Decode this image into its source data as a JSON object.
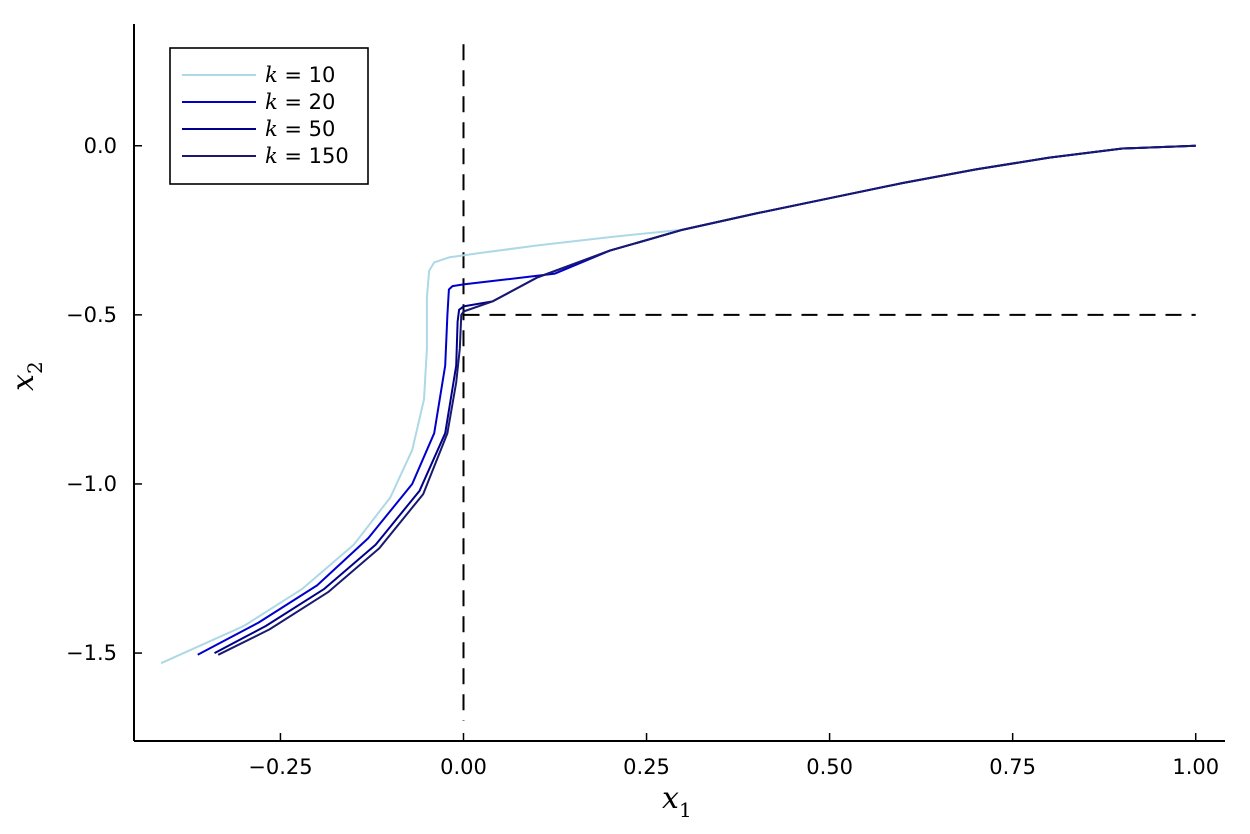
{
  "chart_data": {
    "type": "line",
    "xlabel": "x",
    "xlabel_subscript": "1",
    "ylabel": "x",
    "ylabel_subscript": "2",
    "xlim": [
      -0.45,
      1.04
    ],
    "ylim": [
      -1.76,
      0.36
    ],
    "x_ticks": [
      -0.25,
      0.0,
      0.25,
      0.5,
      0.75,
      1.0
    ],
    "x_tick_labels": [
      "−0.25",
      "0.00",
      "0.25",
      "0.50",
      "0.75",
      "1.00"
    ],
    "y_ticks": [
      0.0,
      -0.5,
      -1.0,
      -1.5
    ],
    "y_tick_labels": [
      "0.0",
      "−0.5",
      "−1.0",
      "−1.5"
    ],
    "grid": false,
    "legend_position": "top-left",
    "reference_lines": [
      {
        "orientation": "vertical",
        "x": 0.0,
        "y_range": [
          -1.7,
          0.3
        ],
        "style": "dashed",
        "color": "#000000"
      },
      {
        "orientation": "horizontal",
        "y": -0.5,
        "x_range": [
          0.0,
          1.0
        ],
        "style": "dashed",
        "color": "#000000"
      }
    ],
    "series": [
      {
        "name": "k = 10",
        "legend_symbol": "k",
        "legend_value": "10",
        "color": "#add8e6",
        "points": [
          [
            1.0,
            0.0
          ],
          [
            0.9,
            -0.008
          ],
          [
            0.8,
            -0.035
          ],
          [
            0.7,
            -0.07
          ],
          [
            0.6,
            -0.11
          ],
          [
            0.5,
            -0.155
          ],
          [
            0.4,
            -0.2
          ],
          [
            0.3,
            -0.248
          ],
          [
            0.2,
            -0.27
          ],
          [
            0.1,
            -0.295
          ],
          [
            0.02,
            -0.318
          ],
          [
            -0.02,
            -0.33
          ],
          [
            -0.04,
            -0.345
          ],
          [
            -0.047,
            -0.37
          ],
          [
            -0.05,
            -0.45
          ],
          [
            -0.05,
            -0.6
          ],
          [
            -0.054,
            -0.75
          ],
          [
            -0.07,
            -0.9
          ],
          [
            -0.1,
            -1.04
          ],
          [
            -0.15,
            -1.18
          ],
          [
            -0.22,
            -1.31
          ],
          [
            -0.3,
            -1.42
          ],
          [
            -0.413,
            -1.53
          ]
        ]
      },
      {
        "name": "k = 20",
        "legend_symbol": "k",
        "legend_value": "20",
        "color": "#0000cd",
        "points": [
          [
            1.0,
            0.0
          ],
          [
            0.9,
            -0.008
          ],
          [
            0.8,
            -0.035
          ],
          [
            0.7,
            -0.07
          ],
          [
            0.6,
            -0.11
          ],
          [
            0.5,
            -0.155
          ],
          [
            0.4,
            -0.2
          ],
          [
            0.3,
            -0.248
          ],
          [
            0.2,
            -0.31
          ],
          [
            0.125,
            -0.378
          ],
          [
            0.06,
            -0.395
          ],
          [
            0.0,
            -0.41
          ],
          [
            -0.015,
            -0.415
          ],
          [
            -0.02,
            -0.425
          ],
          [
            -0.022,
            -0.5
          ],
          [
            -0.025,
            -0.65
          ],
          [
            -0.04,
            -0.85
          ],
          [
            -0.07,
            -1.0
          ],
          [
            -0.13,
            -1.16
          ],
          [
            -0.2,
            -1.3
          ],
          [
            -0.28,
            -1.41
          ],
          [
            -0.363,
            -1.505
          ]
        ]
      },
      {
        "name": "k = 50",
        "legend_symbol": "k",
        "legend_value": "50",
        "color": "#00008b",
        "points": [
          [
            1.0,
            0.0
          ],
          [
            0.9,
            -0.008
          ],
          [
            0.8,
            -0.035
          ],
          [
            0.7,
            -0.07
          ],
          [
            0.6,
            -0.11
          ],
          [
            0.5,
            -0.155
          ],
          [
            0.4,
            -0.2
          ],
          [
            0.3,
            -0.248
          ],
          [
            0.2,
            -0.31
          ],
          [
            0.1,
            -0.39
          ],
          [
            0.04,
            -0.46
          ],
          [
            0.0,
            -0.475
          ],
          [
            -0.006,
            -0.485
          ],
          [
            -0.008,
            -0.52
          ],
          [
            -0.01,
            -0.65
          ],
          [
            -0.025,
            -0.85
          ],
          [
            -0.06,
            -1.02
          ],
          [
            -0.12,
            -1.18
          ],
          [
            -0.19,
            -1.31
          ],
          [
            -0.27,
            -1.42
          ],
          [
            -0.34,
            -1.5
          ]
        ]
      },
      {
        "name": "k = 150",
        "legend_symbol": "k",
        "legend_value": "150",
        "color": "#191970",
        "points": [
          [
            1.0,
            0.0
          ],
          [
            0.9,
            -0.008
          ],
          [
            0.8,
            -0.035
          ],
          [
            0.7,
            -0.07
          ],
          [
            0.6,
            -0.11
          ],
          [
            0.5,
            -0.155
          ],
          [
            0.4,
            -0.2
          ],
          [
            0.3,
            -0.248
          ],
          [
            0.2,
            -0.31
          ],
          [
            0.1,
            -0.39
          ],
          [
            0.04,
            -0.46
          ],
          [
            0.0,
            -0.49
          ],
          [
            -0.003,
            -0.5
          ],
          [
            -0.005,
            -0.6
          ],
          [
            -0.01,
            -0.7
          ],
          [
            -0.022,
            -0.85
          ],
          [
            -0.055,
            -1.03
          ],
          [
            -0.115,
            -1.19
          ],
          [
            -0.185,
            -1.32
          ],
          [
            -0.265,
            -1.43
          ],
          [
            -0.335,
            -1.505
          ]
        ]
      }
    ]
  }
}
